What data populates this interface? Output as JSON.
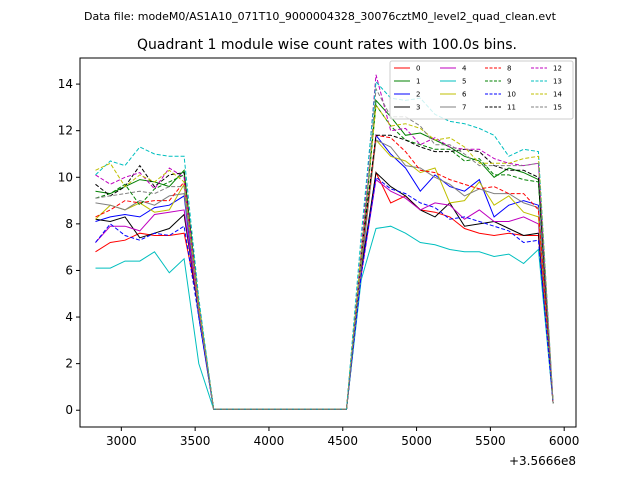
{
  "chart_data": {
    "type": "line",
    "suptitle": "Data file: modeM0/AS1A10_071T10_9000004328_30076cztM0_level2_quad_clean.evt",
    "title": "Quadrant 1 module wise count rates with 100.0s bins.",
    "xlabel": "",
    "ylabel": "",
    "x_offset_label": "+3.5666e8",
    "xlim": [
      2720,
      6080
    ],
    "ylim": [
      -0.72,
      15.12
    ],
    "x_ticks": [
      3000,
      3500,
      4000,
      4500,
      5000,
      5500,
      6000
    ],
    "x_tick_labels": [
      "3000",
      "3500",
      "4000",
      "4500",
      "5000",
      "5500",
      "6000"
    ],
    "y_ticks": [
      0,
      2,
      4,
      6,
      8,
      10,
      12,
      14
    ],
    "y_tick_labels": [
      "0",
      "2",
      "4",
      "6",
      "8",
      "10",
      "12",
      "14"
    ],
    "grid": false,
    "legend_position": "top-right",
    "x": [
      2825,
      2925,
      3025,
      3125,
      3225,
      3325,
      3425,
      3525,
      3625,
      3725,
      3825,
      3925,
      4025,
      4125,
      4225,
      4325,
      4425,
      4525,
      4625,
      4725,
      4825,
      4925,
      5025,
      5125,
      5225,
      5325,
      5425,
      5525,
      5625,
      5725,
      5825,
      5925
    ],
    "series": [
      {
        "name": "0",
        "color": "#ff0000",
        "dash": "solid",
        "values": [
          6.8,
          7.2,
          7.3,
          7.6,
          7.5,
          7.5,
          7.6,
          4.5,
          0.05,
          0.05,
          0.05,
          0.05,
          0.05,
          0.05,
          0.05,
          0.05,
          0.05,
          0.05,
          5.8,
          10.2,
          8.9,
          9.2,
          8.6,
          8.5,
          8.3,
          7.8,
          7.6,
          7.5,
          7.6,
          7.5,
          7.5,
          0.3
        ]
      },
      {
        "name": "1",
        "color": "#008000",
        "dash": "solid",
        "values": [
          9.4,
          9.3,
          9.6,
          9.9,
          9.8,
          9.6,
          10.3,
          4.5,
          0.05,
          0.05,
          0.05,
          0.05,
          0.05,
          0.05,
          0.05,
          0.05,
          0.05,
          0.05,
          6.5,
          13.3,
          12.6,
          11.8,
          11.9,
          11.6,
          11.3,
          10.9,
          10.7,
          10.0,
          10.4,
          10.2,
          9.9,
          0.3
        ]
      },
      {
        "name": "2",
        "color": "#0000ff",
        "dash": "solid",
        "values": [
          8.1,
          8.3,
          8.4,
          8.3,
          8.7,
          8.8,
          9.2,
          4.0,
          0.05,
          0.05,
          0.05,
          0.05,
          0.05,
          0.05,
          0.05,
          0.05,
          0.05,
          0.05,
          6.0,
          11.8,
          11.0,
          10.4,
          9.4,
          10.1,
          9.6,
          9.4,
          9.9,
          8.3,
          8.8,
          9.0,
          8.8,
          0.3
        ]
      },
      {
        "name": "3",
        "color": "#000000",
        "dash": "solid",
        "values": [
          8.2,
          8.1,
          8.3,
          7.4,
          7.6,
          7.8,
          8.4,
          4.2,
          0.05,
          0.05,
          0.05,
          0.05,
          0.05,
          0.05,
          0.05,
          0.05,
          0.05,
          0.05,
          6.0,
          10.2,
          9.6,
          9.2,
          8.6,
          8.3,
          8.9,
          7.9,
          8.0,
          8.1,
          7.8,
          7.5,
          7.6,
          0.3
        ]
      },
      {
        "name": "4",
        "color": "#bf00bf",
        "dash": "solid",
        "values": [
          7.2,
          7.9,
          7.9,
          7.7,
          8.4,
          8.5,
          8.6,
          4.3,
          0.05,
          0.05,
          0.05,
          0.05,
          0.05,
          0.05,
          0.05,
          0.05,
          0.05,
          0.05,
          5.8,
          9.9,
          9.4,
          9.1,
          8.6,
          8.9,
          8.8,
          8.2,
          8.6,
          8.1,
          8.1,
          8.3,
          8.0,
          0.3
        ]
      },
      {
        "name": "5",
        "color": "#00bfbf",
        "dash": "solid",
        "values": [
          6.1,
          6.1,
          6.4,
          6.4,
          6.8,
          5.9,
          6.5,
          2.0,
          0.05,
          0.05,
          0.05,
          0.05,
          0.05,
          0.05,
          0.05,
          0.05,
          0.05,
          0.05,
          5.6,
          7.8,
          7.9,
          7.6,
          7.2,
          7.1,
          6.9,
          6.8,
          6.8,
          6.6,
          6.7,
          6.3,
          6.9,
          0.3
        ]
      },
      {
        "name": "6",
        "color": "#bfbf00",
        "dash": "solid",
        "values": [
          8.2,
          8.8,
          8.6,
          8.9,
          8.5,
          8.6,
          9.7,
          4.2,
          0.05,
          0.05,
          0.05,
          0.05,
          0.05,
          0.05,
          0.05,
          0.05,
          0.05,
          0.05,
          6.2,
          11.6,
          10.9,
          10.7,
          10.2,
          10.4,
          8.9,
          9.0,
          9.8,
          8.8,
          9.2,
          8.5,
          8.3,
          0.3
        ]
      },
      {
        "name": "7",
        "color": "#808080",
        "dash": "solid",
        "values": [
          8.9,
          8.8,
          8.6,
          9.0,
          8.8,
          9.2,
          9.3,
          4.4,
          0.05,
          0.05,
          0.05,
          0.05,
          0.05,
          0.05,
          0.05,
          0.05,
          0.05,
          0.05,
          6.3,
          11.6,
          11.3,
          10.5,
          10.4,
          10.0,
          9.7,
          9.2,
          9.5,
          9.3,
          9.3,
          8.9,
          8.7,
          0.3
        ]
      },
      {
        "name": "8",
        "color": "#ff0000",
        "dash": "dashed",
        "values": [
          8.3,
          8.6,
          9.0,
          8.9,
          9.0,
          9.0,
          9.8,
          4.4,
          0.05,
          0.05,
          0.05,
          0.05,
          0.05,
          0.05,
          0.05,
          0.05,
          0.05,
          0.05,
          6.5,
          11.8,
          11.7,
          11.1,
          10.3,
          10.2,
          9.9,
          9.7,
          9.5,
          9.6,
          9.3,
          9.3,
          8.6,
          0.3
        ]
      },
      {
        "name": "9",
        "color": "#008000",
        "dash": "dashed",
        "values": [
          9.1,
          9.3,
          9.7,
          8.8,
          9.5,
          9.8,
          10.1,
          4.6,
          0.05,
          0.05,
          0.05,
          0.05,
          0.05,
          0.05,
          0.05,
          0.05,
          0.05,
          0.05,
          6.6,
          13.1,
          12.2,
          11.6,
          11.4,
          11.2,
          11.2,
          10.7,
          10.8,
          10.1,
          10.1,
          9.9,
          9.8,
          0.3
        ]
      },
      {
        "name": "10",
        "color": "#0000ff",
        "dash": "dashed",
        "values": [
          7.2,
          8.0,
          7.5,
          7.3,
          7.6,
          7.5,
          7.9,
          4.0,
          0.05,
          0.05,
          0.05,
          0.05,
          0.05,
          0.05,
          0.05,
          0.05,
          0.05,
          0.05,
          5.8,
          10.0,
          9.5,
          9.3,
          8.9,
          8.7,
          8.2,
          8.3,
          8.1,
          7.9,
          7.7,
          7.2,
          7.3,
          0.3
        ]
      },
      {
        "name": "11",
        "color": "#000000",
        "dash": "dashed",
        "values": [
          9.7,
          9.2,
          9.6,
          10.5,
          9.6,
          10.1,
          10.2,
          4.6,
          0.05,
          0.05,
          0.05,
          0.05,
          0.05,
          0.05,
          0.05,
          0.05,
          0.05,
          0.05,
          6.7,
          11.8,
          11.8,
          11.6,
          11.3,
          11.1,
          11.1,
          11.2,
          11.1,
          10.5,
          10.3,
          10.3,
          10.0,
          0.3
        ]
      },
      {
        "name": "12",
        "color": "#bf00bf",
        "dash": "dashed",
        "values": [
          10.1,
          9.7,
          10.0,
          10.2,
          9.5,
          10.4,
          10.0,
          4.5,
          0.05,
          0.05,
          0.05,
          0.05,
          0.05,
          0.05,
          0.05,
          0.05,
          0.05,
          0.05,
          6.9,
          14.4,
          12.0,
          12.1,
          11.4,
          11.7,
          11.3,
          11.2,
          11.2,
          10.8,
          10.6,
          10.5,
          10.6,
          0.3
        ]
      },
      {
        "name": "13",
        "color": "#00bfbf",
        "dash": "dashed",
        "values": [
          10.1,
          10.7,
          10.5,
          11.3,
          11.0,
          10.9,
          10.9,
          4.8,
          0.05,
          0.05,
          0.05,
          0.05,
          0.05,
          0.05,
          0.05,
          0.05,
          0.05,
          0.05,
          7.5,
          14.1,
          13.4,
          13.3,
          13.4,
          12.7,
          12.4,
          12.3,
          12.1,
          11.8,
          10.9,
          11.2,
          11.1,
          0.3
        ]
      },
      {
        "name": "14",
        "color": "#bfbf00",
        "dash": "dashed",
        "values": [
          10.3,
          10.6,
          9.6,
          10.1,
          9.8,
          10.3,
          9.8,
          4.5,
          0.05,
          0.05,
          0.05,
          0.05,
          0.05,
          0.05,
          0.05,
          0.05,
          0.05,
          0.05,
          6.8,
          13.1,
          12.2,
          12.3,
          12.1,
          11.6,
          11.7,
          11.3,
          10.6,
          10.6,
          10.6,
          10.8,
          10.9,
          0.3
        ]
      },
      {
        "name": "15",
        "color": "#808080",
        "dash": "dashed",
        "values": [
          9.1,
          9.2,
          9.3,
          9.4,
          9.3,
          9.6,
          9.6,
          4.3,
          0.05,
          0.05,
          0.05,
          0.05,
          0.05,
          0.05,
          0.05,
          0.05,
          0.05,
          0.05,
          6.4,
          13.8,
          12.6,
          12.6,
          12.2,
          11.4,
          11.4,
          11.0,
          10.5,
          10.5,
          10.5,
          10.5,
          10.6,
          0.3
        ]
      }
    ]
  }
}
